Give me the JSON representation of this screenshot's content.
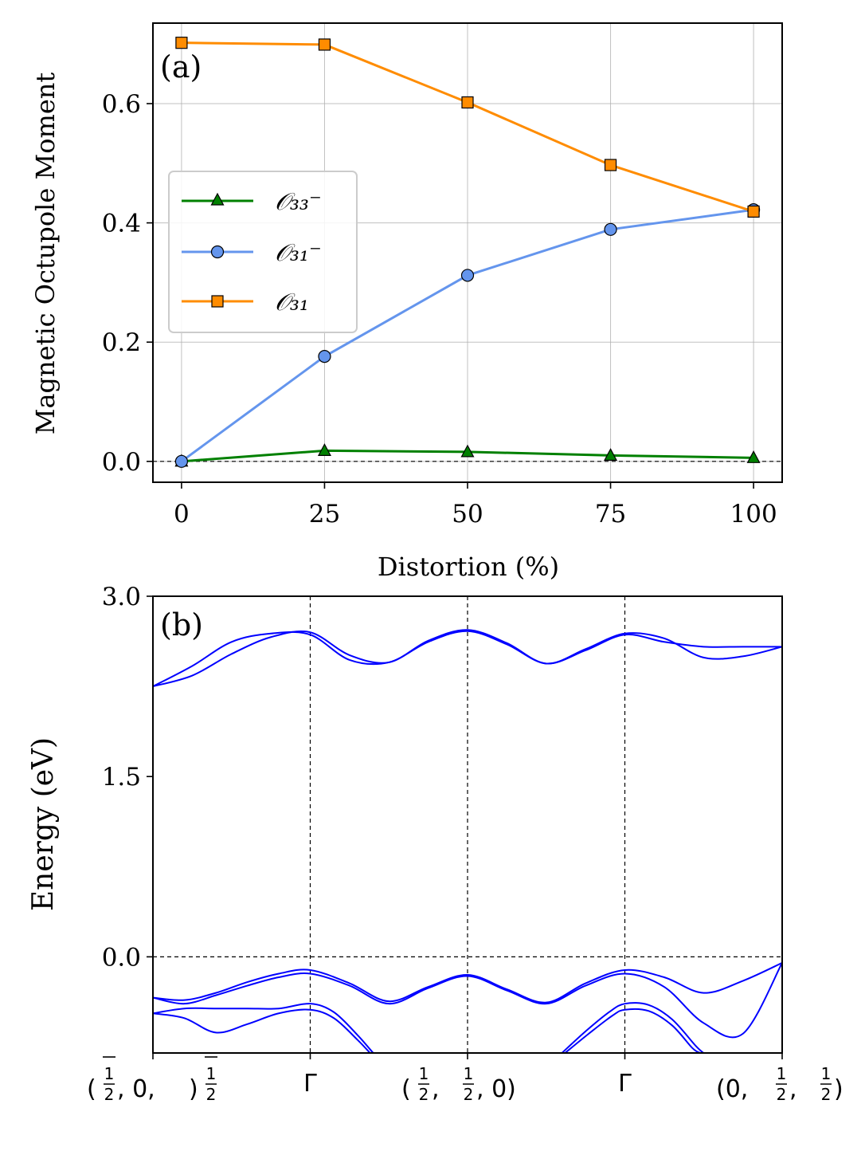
{
  "chart_data": [
    {
      "type": "line",
      "panel_label": "(a)",
      "xlabel": "Distortion (%)",
      "ylabel": "Magnetic Octupole Moment",
      "x": [
        0,
        25,
        50,
        75,
        100
      ],
      "xlim": [
        -5,
        105
      ],
      "ylim": [
        -0.035,
        0.735
      ],
      "xticks": [
        "0",
        "25",
        "50",
        "75",
        "100"
      ],
      "yticks": [
        "0.0",
        "0.2",
        "0.4",
        "0.6"
      ],
      "grid": true,
      "legend_position": "center-left",
      "series": [
        {
          "name": "𝒪₃₃⁻",
          "color": "#008000",
          "marker": "triangle",
          "values": [
            0.0,
            0.018,
            0.016,
            0.01,
            0.006
          ]
        },
        {
          "name": "𝒪₃₁⁻",
          "color": "#6495ED",
          "marker": "circle",
          "values": [
            0.0,
            0.176,
            0.312,
            0.389,
            0.422
          ]
        },
        {
          "name": "𝒪₃₁",
          "color": "#FF8C00",
          "marker": "square",
          "values": [
            0.702,
            0.699,
            0.602,
            0.497,
            0.419
          ]
        }
      ],
      "reference_line": {
        "y": 0.0,
        "style": "dashed"
      }
    },
    {
      "type": "line",
      "panel_label": "(b)",
      "ylabel": "Energy (eV)",
      "ylim": [
        -0.8,
        3.0
      ],
      "yticks": [
        "0.0",
        "1.5",
        "3.0"
      ],
      "kpath_labels": [
        {
          "num": [
            "1",
            "",
            "1"
          ],
          "parts": [
            "(",
            ", 0, ",
            ")"
          ],
          "bar": true
        },
        {
          "text": "Γ"
        },
        {
          "num": [
            "1",
            "1"
          ],
          "parts": [
            "(",
            ", ",
            ", 0)"
          ],
          "bar": false
        },
        {
          "text": "Γ"
        },
        {
          "num": [
            "1",
            "1"
          ],
          "parts": [
            "(0, ",
            ", ",
            ")"
          ],
          "bar": false
        }
      ],
      "line_color": "#0000FF",
      "reference_line": {
        "y": 0.0,
        "style": "dashed"
      },
      "bands": [
        {
          "x": [
            0,
            0.25,
            0.5,
            0.75,
            1,
            1.25,
            1.5,
            1.75,
            2,
            2.25,
            2.5,
            2.75,
            3,
            3.25,
            3.5,
            3.75,
            4
          ],
          "y": [
            2.25,
            2.42,
            2.62,
            2.69,
            2.68,
            2.47,
            2.45,
            2.62,
            2.71,
            2.6,
            2.44,
            2.55,
            2.68,
            2.62,
            2.58,
            2.58,
            2.58
          ]
        },
        {
          "x": [
            0,
            0.25,
            0.5,
            0.75,
            1,
            1.25,
            1.5,
            1.75,
            2,
            2.25,
            2.5,
            2.75,
            3,
            3.25,
            3.5,
            3.75,
            4
          ],
          "y": [
            2.25,
            2.34,
            2.52,
            2.66,
            2.7,
            2.51,
            2.45,
            2.63,
            2.72,
            2.61,
            2.44,
            2.56,
            2.69,
            2.65,
            2.49,
            2.5,
            2.58
          ]
        },
        {
          "x": [
            0,
            0.2,
            0.4,
            0.6,
            0.8,
            1,
            1.25,
            1.5,
            1.75,
            2,
            2.25,
            2.5,
            2.75,
            3,
            3.25,
            3.5,
            3.75,
            4
          ],
          "y": [
            -0.34,
            -0.36,
            -0.3,
            -0.21,
            -0.14,
            -0.11,
            -0.22,
            -0.37,
            -0.25,
            -0.15,
            -0.27,
            -0.38,
            -0.22,
            -0.11,
            -0.17,
            -0.3,
            -0.2,
            -0.05
          ]
        },
        {
          "x": [
            0,
            0.2,
            0.4,
            0.6,
            0.8,
            1,
            1.25,
            1.5,
            1.75,
            2,
            2.25,
            2.5,
            2.75,
            3,
            3.25,
            3.5,
            3.75,
            4
          ],
          "y": [
            -0.34,
            -0.39,
            -0.32,
            -0.24,
            -0.17,
            -0.14,
            -0.24,
            -0.39,
            -0.26,
            -0.16,
            -0.28,
            -0.39,
            -0.24,
            -0.14,
            -0.25,
            -0.55,
            -0.64,
            -0.05
          ]
        },
        {
          "x": [
            0,
            0.2,
            0.4,
            0.6,
            0.8,
            1,
            1.15,
            1.3,
            1.4
          ],
          "y": [
            -0.47,
            -0.43,
            -0.43,
            -0.43,
            -0.43,
            -0.39,
            -0.46,
            -0.65,
            -0.8
          ]
        },
        {
          "x": [
            0,
            0.2,
            0.4,
            0.6,
            0.8,
            1,
            1.15,
            1.3,
            1.38
          ],
          "y": [
            -0.47,
            -0.51,
            -0.63,
            -0.56,
            -0.47,
            -0.44,
            -0.51,
            -0.69,
            -0.8
          ]
        },
        {
          "x": [
            2.6,
            2.75,
            2.9,
            3,
            3.15,
            3.3,
            3.45,
            3.5
          ],
          "y": [
            -0.8,
            -0.62,
            -0.46,
            -0.39,
            -0.4,
            -0.52,
            -0.74,
            -0.8
          ]
        },
        {
          "x": [
            2.62,
            2.77,
            2.92,
            3,
            3.15,
            3.3,
            3.43,
            3.48
          ],
          "y": [
            -0.8,
            -0.64,
            -0.49,
            -0.44,
            -0.45,
            -0.57,
            -0.76,
            -0.8
          ]
        }
      ],
      "kpath_positions": [
        0,
        1,
        2,
        3,
        4
      ]
    }
  ]
}
